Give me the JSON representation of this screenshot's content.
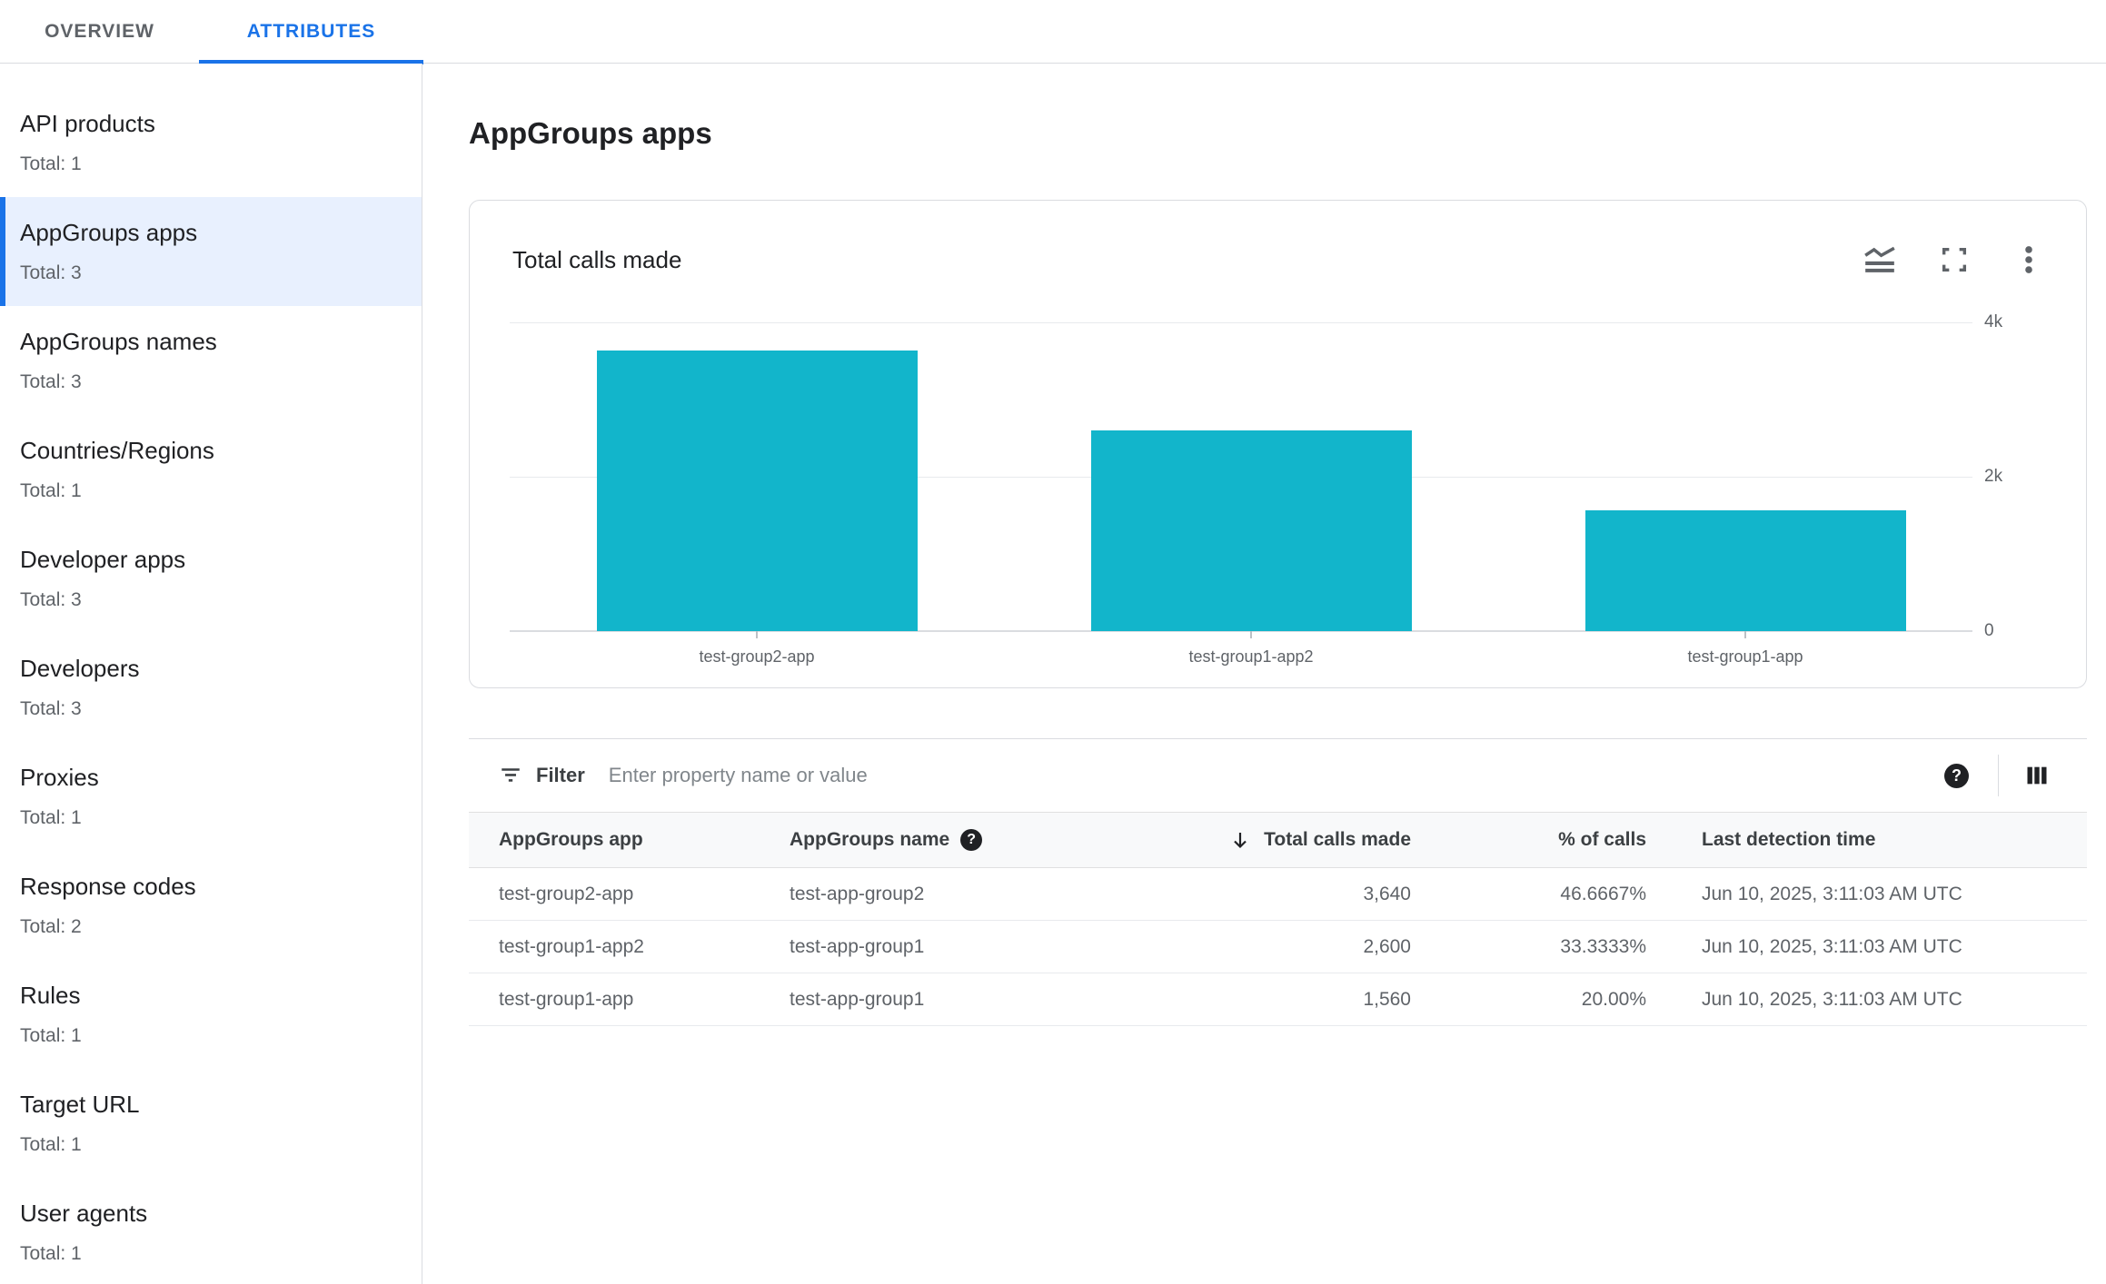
{
  "tab_bar": {
    "tabs": [
      {
        "label": "OVERVIEW",
        "active": false
      },
      {
        "label": "ATTRIBUTES",
        "active": true
      }
    ]
  },
  "sidebar": {
    "items": [
      {
        "label": "API products",
        "total": "Total: 1",
        "selected": false
      },
      {
        "label": "AppGroups apps",
        "total": "Total: 3",
        "selected": true
      },
      {
        "label": "AppGroups names",
        "total": "Total: 3",
        "selected": false
      },
      {
        "label": "Countries/Regions",
        "total": "Total: 1",
        "selected": false
      },
      {
        "label": "Developer apps",
        "total": "Total: 3",
        "selected": false
      },
      {
        "label": "Developers",
        "total": "Total: 3",
        "selected": false
      },
      {
        "label": "Proxies",
        "total": "Total: 1",
        "selected": false
      },
      {
        "label": "Response codes",
        "total": "Total: 2",
        "selected": false
      },
      {
        "label": "Rules",
        "total": "Total: 1",
        "selected": false
      },
      {
        "label": "Target URL",
        "total": "Total: 1",
        "selected": false
      },
      {
        "label": "User agents",
        "total": "Total: 1",
        "selected": false
      }
    ]
  },
  "main": {
    "page_title": "AppGroups apps",
    "chart_card": {
      "title": "Total calls made"
    },
    "filter_bar": {
      "label": "Filter",
      "placeholder": "Enter property name or value"
    },
    "table": {
      "columns": [
        {
          "label": "AppGroups app",
          "align": "left"
        },
        {
          "label": "AppGroups name",
          "align": "left",
          "has_help": true
        },
        {
          "label": "Total calls made",
          "align": "right",
          "sorted": "desc"
        },
        {
          "label": "% of calls",
          "align": "right"
        },
        {
          "label": "Last detection time",
          "align": "left"
        }
      ],
      "rows": [
        [
          "test-group2-app",
          "test-app-group2",
          "3,640",
          "46.6667%",
          "Jun 10, 2025, 3:11:03 AM UTC"
        ],
        [
          "test-group1-app2",
          "test-app-group1",
          "2,600",
          "33.3333%",
          "Jun 10, 2025, 3:11:03 AM UTC"
        ],
        [
          "test-group1-app",
          "test-app-group1",
          "1,560",
          "20.00%",
          "Jun 10, 2025, 3:11:03 AM UTC"
        ]
      ]
    }
  },
  "chart_data": {
    "type": "bar",
    "title": "Total calls made",
    "categories": [
      "test-group2-app",
      "test-group1-app2",
      "test-group1-app"
    ],
    "values": [
      3640,
      2600,
      1560
    ],
    "xlabel": "",
    "ylabel": "",
    "ylim": [
      0,
      4000
    ],
    "yticks": [
      {
        "value": 0,
        "label": "0"
      },
      {
        "value": 2000,
        "label": "2k"
      },
      {
        "value": 4000,
        "label": "4k"
      }
    ],
    "bar_color": "#12B5CB",
    "grid": "horizontal",
    "legend": "none"
  },
  "colors": {
    "accent_blue": "#1A73E8",
    "bar_teal": "#12B5CB",
    "selected_bg": "#E8F0FE",
    "border": "#DADCE0",
    "header_bg": "#F8F9FA",
    "text_primary": "#202124",
    "text_secondary": "#5F6368"
  }
}
